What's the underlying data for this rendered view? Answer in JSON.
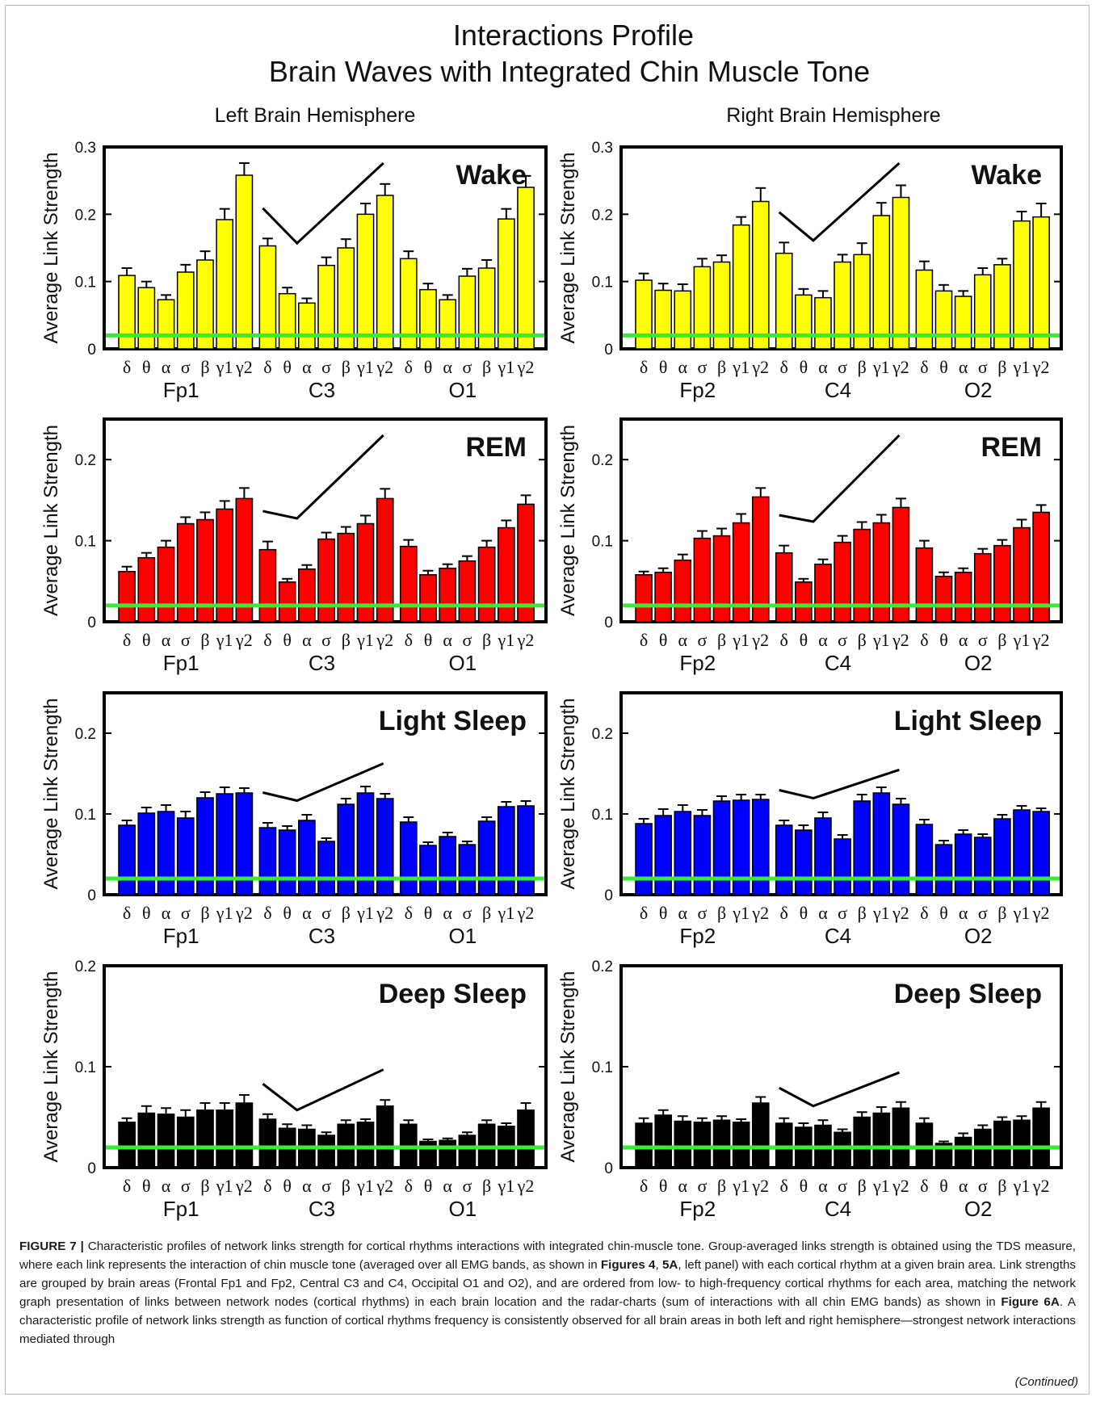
{
  "figure": {
    "title_line1": "Interactions Profile",
    "title_line2": "Brain Waves with Integrated Chin Muscle Tone",
    "left_header": "Left Brain Hemisphere",
    "right_header": "Right Brain Hemisphere",
    "ylabel": "Average Link Strength",
    "band_labels": [
      "δ",
      "θ",
      "α",
      "σ",
      "β",
      "γ1",
      "γ2"
    ],
    "threshold": 0.02,
    "colors": {
      "wake": "#ffff00",
      "rem": "#ff0000",
      "light_sleep": "#0000ff",
      "deep_sleep": "#000000",
      "threshold_line": "#33ee33"
    }
  },
  "caption": {
    "label": "FIGURE 7 |",
    "text_part1": " Characteristic profiles of network links strength for cortical rhythms interactions with integrated chin-muscle tone. Group-averaged links strength is obtained using the TDS measure, where each link represents the interaction of chin muscle tone (averaged over all EMG bands, as shown in ",
    "ref1": "Figures 4",
    "text_part2": ", ",
    "ref2": "5A",
    "text_part3": ", left panel) with each cortical rhythm at a given brain area. Link strengths are grouped by brain areas (Frontal Fp1 and Fp2, Central C3 and C4, Occipital O1 and O2), and are ordered from low- to high-frequency cortical rhythms for each area, matching the network graph presentation of links between network nodes (cortical rhythms) in each brain location and the radar-charts (sum of interactions with all chin EMG bands) as shown in ",
    "ref3": "Figure 6A",
    "text_part4": ". A characteristic profile of network links strength as function of cortical rhythms frequency is consistently observed for all brain areas in both left and right hemisphere—strongest network interactions mediated through",
    "continued": "(Continued)"
  },
  "chart_data": [
    {
      "type": "bar",
      "hemisphere": "Left Brain Hemisphere",
      "stage": "Wake",
      "color_key": "wake",
      "ylabel": "Average Link Strength",
      "ylim": [
        0,
        0.3
      ],
      "yticks": [
        0,
        0.1,
        0.2,
        0.3
      ],
      "categories": [
        "δ",
        "θ",
        "α",
        "σ",
        "β",
        "γ1",
        "γ2"
      ],
      "groups": [
        {
          "name": "Fp1",
          "values": [
            0.109,
            0.091,
            0.073,
            0.114,
            0.132,
            0.192,
            0.258
          ],
          "errors": [
            0.011,
            0.009,
            0.007,
            0.011,
            0.013,
            0.016,
            0.018
          ]
        },
        {
          "name": "C3",
          "values": [
            0.153,
            0.082,
            0.068,
            0.124,
            0.15,
            0.2,
            0.228
          ],
          "errors": [
            0.011,
            0.009,
            0.007,
            0.012,
            0.013,
            0.016,
            0.017
          ]
        },
        {
          "name": "O1",
          "values": [
            0.134,
            0.088,
            0.073,
            0.108,
            0.12,
            0.193,
            0.24
          ],
          "errors": [
            0.011,
            0.009,
            0.007,
            0.011,
            0.012,
            0.015,
            0.017
          ]
        }
      ]
    },
    {
      "type": "bar",
      "hemisphere": "Right Brain Hemisphere",
      "stage": "Wake",
      "color_key": "wake",
      "ylabel": "Average Link Strength",
      "ylim": [
        0,
        0.3
      ],
      "yticks": [
        0,
        0.1,
        0.2,
        0.3
      ],
      "categories": [
        "δ",
        "θ",
        "α",
        "σ",
        "β",
        "γ1",
        "γ2"
      ],
      "groups": [
        {
          "name": "Fp2",
          "values": [
            0.102,
            0.087,
            0.086,
            0.122,
            0.129,
            0.184,
            0.219
          ],
          "errors": [
            0.01,
            0.01,
            0.01,
            0.012,
            0.01,
            0.012,
            0.02
          ]
        },
        {
          "name": "C4",
          "values": [
            0.142,
            0.08,
            0.076,
            0.129,
            0.14,
            0.198,
            0.225
          ],
          "errors": [
            0.016,
            0.009,
            0.01,
            0.011,
            0.017,
            0.019,
            0.018
          ]
        },
        {
          "name": "O2",
          "values": [
            0.117,
            0.086,
            0.078,
            0.11,
            0.125,
            0.19,
            0.196
          ],
          "errors": [
            0.013,
            0.009,
            0.008,
            0.01,
            0.009,
            0.014,
            0.02
          ]
        }
      ]
    },
    {
      "type": "bar",
      "hemisphere": "Left Brain Hemisphere",
      "stage": "REM",
      "color_key": "rem",
      "ylabel": "Average Link Strength",
      "ylim": [
        0,
        0.25
      ],
      "yticks": [
        0,
        0.1,
        0.2
      ],
      "categories": [
        "δ",
        "θ",
        "α",
        "σ",
        "β",
        "γ1",
        "γ2"
      ],
      "groups": [
        {
          "name": "Fp1",
          "values": [
            0.062,
            0.079,
            0.092,
            0.121,
            0.126,
            0.139,
            0.152
          ],
          "errors": [
            0.006,
            0.006,
            0.008,
            0.008,
            0.009,
            0.01,
            0.013
          ]
        },
        {
          "name": "C3",
          "values": [
            0.089,
            0.049,
            0.065,
            0.102,
            0.109,
            0.121,
            0.152
          ],
          "errors": [
            0.01,
            0.004,
            0.005,
            0.008,
            0.008,
            0.01,
            0.012
          ]
        },
        {
          "name": "O1",
          "values": [
            0.093,
            0.058,
            0.066,
            0.075,
            0.092,
            0.116,
            0.145
          ],
          "errors": [
            0.008,
            0.005,
            0.005,
            0.006,
            0.008,
            0.009,
            0.011
          ]
        }
      ]
    },
    {
      "type": "bar",
      "hemisphere": "Right Brain Hemisphere",
      "stage": "REM",
      "color_key": "rem",
      "ylabel": "Average Link Strength",
      "ylim": [
        0,
        0.25
      ],
      "yticks": [
        0,
        0.1,
        0.2
      ],
      "categories": [
        "δ",
        "θ",
        "α",
        "σ",
        "β",
        "γ1",
        "γ2"
      ],
      "groups": [
        {
          "name": "Fp2",
          "values": [
            0.058,
            0.061,
            0.076,
            0.103,
            0.106,
            0.122,
            0.154
          ],
          "errors": [
            0.004,
            0.005,
            0.007,
            0.009,
            0.009,
            0.011,
            0.011
          ]
        },
        {
          "name": "C4",
          "values": [
            0.085,
            0.049,
            0.071,
            0.098,
            0.114,
            0.122,
            0.141
          ],
          "errors": [
            0.009,
            0.004,
            0.006,
            0.008,
            0.009,
            0.01,
            0.011
          ]
        },
        {
          "name": "O2",
          "values": [
            0.091,
            0.056,
            0.061,
            0.084,
            0.094,
            0.116,
            0.135
          ],
          "errors": [
            0.009,
            0.005,
            0.005,
            0.006,
            0.007,
            0.01,
            0.009
          ]
        }
      ]
    },
    {
      "type": "bar",
      "hemisphere": "Left Brain Hemisphere",
      "stage": "Light Sleep",
      "color_key": "light_sleep",
      "ylabel": "Average Link Strength",
      "ylim": [
        0,
        0.25
      ],
      "yticks": [
        0,
        0.1,
        0.2
      ],
      "categories": [
        "δ",
        "θ",
        "α",
        "σ",
        "β",
        "γ1",
        "γ2"
      ],
      "groups": [
        {
          "name": "Fp1",
          "values": [
            0.086,
            0.101,
            0.103,
            0.095,
            0.12,
            0.125,
            0.126
          ],
          "errors": [
            0.006,
            0.007,
            0.008,
            0.008,
            0.007,
            0.008,
            0.006
          ]
        },
        {
          "name": "C3",
          "values": [
            0.083,
            0.08,
            0.092,
            0.066,
            0.112,
            0.126,
            0.119
          ],
          "errors": [
            0.006,
            0.005,
            0.007,
            0.004,
            0.007,
            0.008,
            0.006
          ]
        },
        {
          "name": "O1",
          "values": [
            0.09,
            0.061,
            0.072,
            0.062,
            0.091,
            0.109,
            0.11
          ],
          "errors": [
            0.006,
            0.004,
            0.005,
            0.004,
            0.005,
            0.006,
            0.006
          ]
        }
      ]
    },
    {
      "type": "bar",
      "hemisphere": "Right Brain Hemisphere",
      "stage": "Light Sleep",
      "color_key": "light_sleep",
      "ylabel": "Average Link Strength",
      "ylim": [
        0,
        0.25
      ],
      "yticks": [
        0,
        0.1,
        0.2
      ],
      "categories": [
        "δ",
        "θ",
        "α",
        "σ",
        "β",
        "γ1",
        "γ2"
      ],
      "groups": [
        {
          "name": "Fp2",
          "values": [
            0.088,
            0.098,
            0.103,
            0.098,
            0.116,
            0.117,
            0.118
          ],
          "errors": [
            0.006,
            0.008,
            0.008,
            0.007,
            0.006,
            0.007,
            0.006
          ]
        },
        {
          "name": "C4",
          "values": [
            0.086,
            0.08,
            0.095,
            0.069,
            0.116,
            0.126,
            0.112
          ],
          "errors": [
            0.006,
            0.006,
            0.007,
            0.005,
            0.008,
            0.007,
            0.007
          ]
        },
        {
          "name": "O2",
          "values": [
            0.087,
            0.062,
            0.075,
            0.071,
            0.094,
            0.105,
            0.103
          ],
          "errors": [
            0.006,
            0.005,
            0.005,
            0.004,
            0.005,
            0.005,
            0.004
          ]
        }
      ]
    },
    {
      "type": "bar",
      "hemisphere": "Left Brain Hemisphere",
      "stage": "Deep Sleep",
      "color_key": "deep_sleep",
      "ylabel": "Average Link Strength",
      "ylim": [
        0,
        0.2
      ],
      "yticks": [
        0,
        0.1,
        0.2
      ],
      "categories": [
        "δ",
        "θ",
        "α",
        "σ",
        "β",
        "γ1",
        "γ2"
      ],
      "groups": [
        {
          "name": "Fp1",
          "values": [
            0.045,
            0.054,
            0.053,
            0.05,
            0.057,
            0.057,
            0.064
          ],
          "errors": [
            0.004,
            0.007,
            0.006,
            0.007,
            0.007,
            0.007,
            0.008
          ]
        },
        {
          "name": "C3",
          "values": [
            0.048,
            0.039,
            0.038,
            0.032,
            0.043,
            0.045,
            0.061
          ],
          "errors": [
            0.005,
            0.004,
            0.004,
            0.003,
            0.004,
            0.003,
            0.006
          ]
        },
        {
          "name": "O1",
          "values": [
            0.043,
            0.026,
            0.027,
            0.032,
            0.043,
            0.041,
            0.057
          ],
          "errors": [
            0.004,
            0.002,
            0.002,
            0.003,
            0.004,
            0.003,
            0.007
          ]
        }
      ]
    },
    {
      "type": "bar",
      "hemisphere": "Right Brain Hemisphere",
      "stage": "Deep Sleep",
      "color_key": "deep_sleep",
      "ylabel": "Average Link Strength",
      "ylim": [
        0,
        0.2
      ],
      "yticks": [
        0,
        0.1,
        0.2
      ],
      "categories": [
        "δ",
        "θ",
        "α",
        "σ",
        "β",
        "γ1",
        "γ2"
      ],
      "groups": [
        {
          "name": "Fp2",
          "values": [
            0.044,
            0.052,
            0.046,
            0.045,
            0.047,
            0.045,
            0.064
          ],
          "errors": [
            0.005,
            0.005,
            0.005,
            0.004,
            0.004,
            0.003,
            0.006
          ]
        },
        {
          "name": "C4",
          "values": [
            0.044,
            0.04,
            0.042,
            0.035,
            0.05,
            0.054,
            0.059
          ],
          "errors": [
            0.005,
            0.004,
            0.005,
            0.003,
            0.005,
            0.006,
            0.006
          ]
        },
        {
          "name": "O2",
          "values": [
            0.044,
            0.024,
            0.03,
            0.038,
            0.046,
            0.047,
            0.059
          ],
          "errors": [
            0.005,
            0.002,
            0.004,
            0.004,
            0.004,
            0.004,
            0.006
          ]
        }
      ]
    }
  ]
}
